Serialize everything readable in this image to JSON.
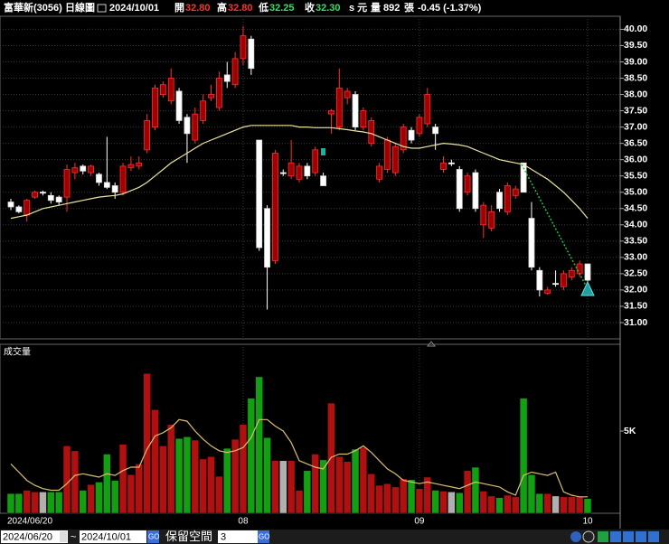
{
  "header": {
    "name": "富華新(3056)",
    "period": "日線圖",
    "date": "2024/10/01",
    "open_label": "開",
    "open": "32.80",
    "high_label": "高",
    "high": "32.80",
    "low_label": "低",
    "low": "32.25",
    "close_label": "收",
    "close": "32.30",
    "unit": "s 元",
    "volume_label": "量",
    "volume": "892",
    "volume_unit": "張",
    "change": "-0.45 (-1.37%)"
  },
  "toolbar": {
    "start": "2024/06/20",
    "sep": "~",
    "end": "2024/10/01",
    "go": "GO",
    "reserve_label": "保留空間",
    "reserve": "3",
    "go2": "GO"
  },
  "chart_data": {
    "type": "candlestick",
    "categories": [
      "2024/06/20",
      null,
      null,
      null,
      null,
      null,
      null,
      null,
      null,
      null,
      null,
      null,
      null,
      null,
      null,
      null,
      null,
      null,
      null,
      null,
      null,
      null,
      null,
      null,
      null,
      null,
      null,
      null,
      null,
      "08",
      null,
      null,
      null,
      null,
      null,
      null,
      null,
      null,
      null,
      null,
      null,
      null,
      null,
      null,
      null,
      null,
      null,
      null,
      null,
      null,
      null,
      "09",
      null,
      null,
      null,
      null,
      null,
      null,
      null,
      null,
      null,
      null,
      null,
      null,
      null,
      null,
      null,
      null,
      null,
      null,
      null,
      null,
      "10"
    ],
    "open": [
      34.7,
      34.55,
      34.3,
      34.85,
      35.0,
      34.9,
      34.85,
      34.85,
      35.6,
      35.8,
      35.6,
      35.55,
      35.3,
      35.2,
      35.0,
      35.75,
      35.8,
      36.3,
      37.0,
      38.0,
      37.8,
      38.1,
      37.3,
      36.6,
      37.2,
      37.9,
      37.6,
      38.6,
      38.3,
      39.1,
      39.7,
      36.6,
      34.5,
      32.9,
      35.6,
      35.5,
      35.4,
      35.8,
      35.6,
      35.5,
      37.4,
      37.0,
      37.9,
      38.0,
      37.0,
      36.5,
      35.4,
      35.7,
      35.6,
      36.3,
      36.9,
      36.8,
      37.1,
      37.0,
      35.7,
      35.9,
      35.7,
      35.0,
      35.6,
      34.0,
      33.9,
      35.0,
      34.4,
      34.9,
      35.9,
      34.2,
      32.6,
      31.9,
      32.2,
      32.1,
      32.4,
      32.5,
      32.8
    ],
    "high": [
      34.8,
      34.6,
      34.8,
      35.05,
      35.05,
      35.0,
      34.9,
      35.85,
      35.9,
      35.85,
      35.85,
      35.6,
      36.7,
      35.3,
      35.9,
      36.1,
      36.1,
      37.4,
      38.3,
      38.4,
      38.8,
      38.2,
      37.4,
      37.6,
      38.0,
      38.3,
      38.7,
      39.0,
      39.3,
      40.1,
      39.8,
      36.6,
      34.6,
      36.3,
      35.7,
      36.6,
      35.9,
      35.9,
      36.4,
      35.6,
      37.55,
      38.8,
      38.2,
      38.1,
      37.6,
      37.3,
      35.9,
      36.7,
      36.5,
      37.1,
      37.0,
      37.4,
      38.2,
      37.1,
      36.1,
      36.0,
      35.8,
      35.6,
      35.7,
      34.7,
      34.6,
      35.1,
      35.3,
      35.2,
      35.9,
      34.7,
      32.7,
      32.1,
      32.6,
      32.6,
      32.7,
      32.9,
      32.8
    ],
    "low": [
      34.45,
      34.35,
      34.1,
      34.8,
      34.9,
      34.65,
      34.6,
      34.4,
      35.4,
      35.55,
      35.5,
      35.2,
      35.1,
      34.8,
      34.9,
      35.65,
      35.7,
      36.2,
      36.9,
      37.9,
      37.7,
      37.1,
      35.9,
      36.5,
      37.1,
      37.8,
      37.5,
      38.2,
      38.2,
      38.9,
      38.6,
      33.2,
      31.4,
      32.8,
      35.5,
      35.4,
      35.3,
      35.4,
      35.5,
      35.2,
      36.8,
      36.9,
      37.7,
      36.9,
      36.9,
      36.4,
      35.3,
      35.6,
      35.5,
      36.2,
      36.5,
      36.7,
      37.0,
      36.3,
      35.6,
      35.8,
      34.4,
      34.9,
      34.4,
      33.6,
      33.8,
      34.4,
      34.3,
      34.8,
      35.0,
      32.6,
      31.8,
      31.85,
      32.1,
      32.0,
      32.3,
      32.4,
      32.25
    ],
    "close": [
      34.55,
      34.4,
      34.75,
      35.0,
      35.0,
      34.75,
      34.7,
      35.7,
      35.75,
      35.65,
      35.8,
      35.3,
      35.15,
      35.0,
      35.8,
      35.85,
      35.9,
      37.2,
      38.2,
      38.3,
      38.5,
      37.2,
      36.8,
      37.4,
      37.8,
      38.0,
      38.5,
      38.4,
      39.1,
      39.8,
      38.8,
      33.3,
      32.7,
      36.2,
      35.6,
      35.9,
      35.8,
      35.5,
      36.3,
      35.2,
      37.5,
      38.2,
      38.1,
      37.0,
      37.5,
      37.2,
      35.8,
      36.6,
      36.4,
      37.0,
      36.6,
      37.3,
      38.0,
      36.8,
      35.9,
      35.9,
      34.5,
      35.5,
      34.5,
      34.6,
      34.4,
      34.5,
      35.2,
      35.1,
      35.0,
      32.7,
      32.0,
      32.0,
      32.2,
      32.5,
      32.6,
      32.8,
      32.3
    ],
    "ma_values": [
      34.2,
      34.25,
      34.3,
      34.4,
      34.5,
      34.55,
      34.6,
      34.65,
      34.7,
      34.75,
      34.8,
      34.85,
      34.88,
      34.9,
      34.95,
      35.05,
      35.15,
      35.3,
      35.5,
      35.7,
      35.9,
      36.05,
      36.2,
      36.35,
      36.5,
      36.6,
      36.7,
      36.8,
      36.9,
      37.0,
      37.05,
      37.05,
      37.05,
      37.05,
      37.05,
      37.05,
      37.0,
      37.0,
      36.98,
      36.98,
      36.98,
      36.95,
      36.92,
      36.88,
      36.85,
      36.8,
      36.7,
      36.6,
      36.5,
      36.4,
      36.35,
      36.35,
      36.4,
      36.45,
      36.5,
      36.48,
      36.45,
      36.4,
      36.3,
      36.2,
      36.1,
      36.0,
      35.95,
      35.9,
      35.85,
      35.7,
      35.55,
      35.4,
      35.2,
      35.0,
      34.75,
      34.5,
      34.2
    ],
    "ma_color": "#ece3a0",
    "up_color": "#a00000",
    "up_border": "#ff3030",
    "down_color": "#ffffff",
    "ylim": [
      30.5,
      40.4
    ],
    "yticks": [
      {
        "value": 31,
        "label": "31.00"
      },
      {
        "value": 31.5,
        "label": "31.50"
      },
      {
        "value": 32,
        "label": "32.00"
      },
      {
        "value": 32.5,
        "label": "32.50"
      },
      {
        "value": 33,
        "label": "33.00"
      },
      {
        "value": 33.5,
        "label": "33.50"
      },
      {
        "value": 34,
        "label": "34.00"
      },
      {
        "value": 34.5,
        "label": "34.50"
      },
      {
        "value": 35,
        "label": "35.00"
      },
      {
        "value": 35.5,
        "label": "35.50"
      },
      {
        "value": 36,
        "label": "36.00"
      },
      {
        "value": 36.5,
        "label": "36.50"
      },
      {
        "value": 37,
        "label": "37.00"
      },
      {
        "value": 37.5,
        "label": "37.50"
      },
      {
        "value": 38,
        "label": "38.00"
      },
      {
        "value": 38.5,
        "label": "38.50"
      },
      {
        "value": 39,
        "label": "39.00"
      },
      {
        "value": 39.5,
        "label": "39.50"
      },
      {
        "value": 40,
        "label": "40.00"
      }
    ],
    "grid": true,
    "volume": {
      "label": "成交量",
      "values": [
        1200,
        1200,
        1400,
        1300,
        1300,
        1300,
        1300,
        4100,
        3800,
        1400,
        1750,
        1900,
        3600,
        2000,
        4200,
        2350,
        3000,
        8500,
        6300,
        4100,
        5400,
        4550,
        4650,
        4450,
        3300,
        3450,
        2250,
        3950,
        4500,
        5400,
        7000,
        8300,
        4600,
        3200,
        3200,
        3200,
        1400,
        2600,
        3600,
        3250,
        6700,
        3450,
        3150,
        3900,
        4000,
        2400,
        1700,
        1800,
        1600,
        2100,
        2050,
        1500,
        2200,
        1400,
        1350,
        1300,
        1250,
        2600,
        2800,
        1350,
        1050,
        950,
        1100,
        1000,
        7000,
        2350,
        1200,
        1200,
        1050,
        1000,
        1000,
        1000,
        892
      ],
      "ma_values": [
        3000,
        2500,
        2000,
        1700,
        1500,
        1400,
        1400,
        1800,
        2300,
        2400,
        2300,
        2200,
        2400,
        2300,
        2600,
        2800,
        2800,
        3900,
        4700,
        4900,
        5200,
        5700,
        5600,
        5000,
        4500,
        4100,
        3800,
        3700,
        3800,
        4000,
        4600,
        5700,
        5700,
        5300,
        5000,
        4300,
        3200,
        3000,
        2800,
        2700,
        3400,
        3600,
        3600,
        3800,
        4100,
        3700,
        3200,
        2700,
        2400,
        2000,
        1900,
        1800,
        1900,
        1800,
        1700,
        1600,
        1500,
        1700,
        1900,
        1800,
        1700,
        1600,
        1300,
        1100,
        2300,
        2500,
        2400,
        2300,
        2500,
        1300,
        1100,
        1000,
        1000
      ],
      "ma_color": "#d8c070",
      "up_color": "#b01010",
      "down_color": "#12a012",
      "flat_color": "#b0b0b0",
      "ylim": [
        0,
        10000
      ],
      "yticks": [
        {
          "value": 5000,
          "label": "5K"
        }
      ]
    }
  }
}
